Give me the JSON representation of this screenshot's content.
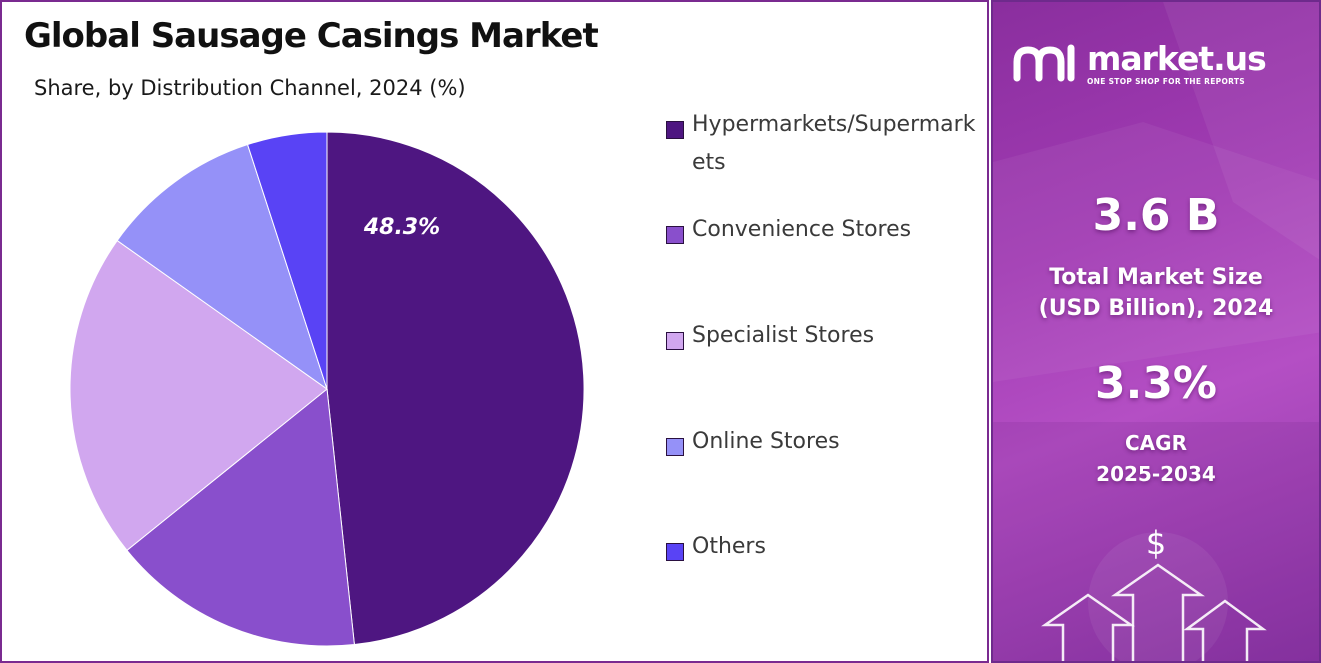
{
  "chart_data": {
    "type": "pie",
    "title": "Global Sausage Casings Market",
    "subtitle": "Share, by Distribution Channel, 2024 (%)",
    "slices": [
      {
        "label": "Hypermarkets/Supermarkets",
        "value": 48.3,
        "color": "#4e1681"
      },
      {
        "label": "Convenience Stores",
        "value": 15.9,
        "color": "#894fcc"
      },
      {
        "label": "Specialist Stores",
        "value": 20.6,
        "color": "#d1a7ef"
      },
      {
        "label": "Online Stores",
        "value": 10.2,
        "color": "#9591f8"
      },
      {
        "label": "Others",
        "value": 5.0,
        "color": "#5943f5"
      }
    ],
    "data_labels": [
      {
        "slice": 0,
        "text": "48.3%"
      }
    ],
    "legend_position": "right"
  },
  "brand": {
    "name": "market.us",
    "tagline": "ONE STOP SHOP FOR THE REPORTS"
  },
  "stats": {
    "market_size_value": "3.6 B",
    "market_size_label_line1": "Total Market Size",
    "market_size_label_line2": "(USD Billion), 2024",
    "cagr_value": "3.3%",
    "cagr_label_line1": "CAGR",
    "cagr_label_line2": "2025-2034"
  },
  "decor": {
    "currency_symbol": "$"
  },
  "colors": {
    "panel_accent": "#a23cb4",
    "border": "#7a2a90"
  }
}
